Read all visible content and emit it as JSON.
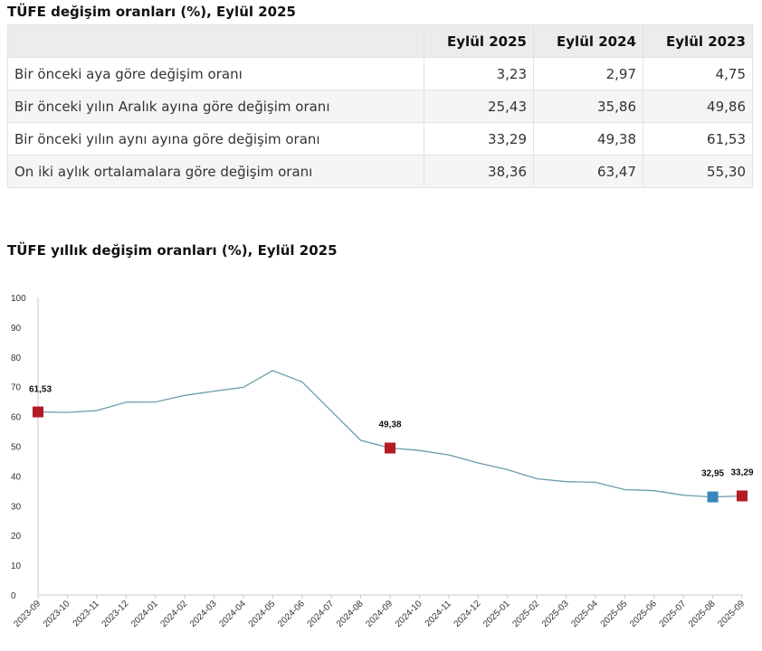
{
  "table": {
    "title": "TÜFE değişim oranları (%), Eylül 2025",
    "columns": [
      "Eylül 2025",
      "Eylül 2024",
      "Eylül 2023"
    ],
    "rows": [
      {
        "label": "Bir önceki aya göre değişim oranı",
        "values": [
          "3,23",
          "2,97",
          "4,75"
        ]
      },
      {
        "label": "Bir önceki yılın Aralık ayına göre değişim oranı",
        "values": [
          "25,43",
          "35,86",
          "49,86"
        ]
      },
      {
        "label": "Bir önceki yılın aynı ayına göre değişim oranı",
        "values": [
          "33,29",
          "49,38",
          "61,53"
        ]
      },
      {
        "label": "On iki aylık ortalamalara göre değişim oranı",
        "values": [
          "38,36",
          "63,47",
          "55,30"
        ]
      }
    ]
  },
  "chart_data": {
    "type": "line",
    "title": "TÜFE yıllık değişim oranları (%), Eylül 2025",
    "xlabel": "",
    "ylabel": "",
    "ylim": [
      0,
      100
    ],
    "yticks": [
      0,
      10,
      20,
      30,
      40,
      50,
      60,
      70,
      80,
      90,
      100
    ],
    "grid": false,
    "line_color": "#6a9bab",
    "categories": [
      "2023-09",
      "2023-10",
      "2023-11",
      "2023-12",
      "2024-01",
      "2024-02",
      "2024-03",
      "2024-04",
      "2024-05",
      "2024-06",
      "2024-07",
      "2024-08",
      "2024-09",
      "2024-10",
      "2024-11",
      "2024-12",
      "2025-01",
      "2025-02",
      "2025-03",
      "2025-04",
      "2025-05",
      "2025-06",
      "2025-07",
      "2025-08",
      "2025-09"
    ],
    "values": [
      61.53,
      61.36,
      61.98,
      64.77,
      64.86,
      67.07,
      68.5,
      69.8,
      75.45,
      71.6,
      61.78,
      51.97,
      49.38,
      48.58,
      47.09,
      44.38,
      42.12,
      39.05,
      38.1,
      37.86,
      35.41,
      35.05,
      33.52,
      32.95,
      33.29
    ],
    "markers": [
      {
        "index": 0,
        "label": "61,53",
        "color": "#b31b25"
      },
      {
        "index": 12,
        "label": "49,38",
        "color": "#b31b25"
      },
      {
        "index": 23,
        "label": "32,95",
        "color": "#3a86c0"
      },
      {
        "index": 24,
        "label": "33,29",
        "color": "#b31b25"
      }
    ]
  }
}
